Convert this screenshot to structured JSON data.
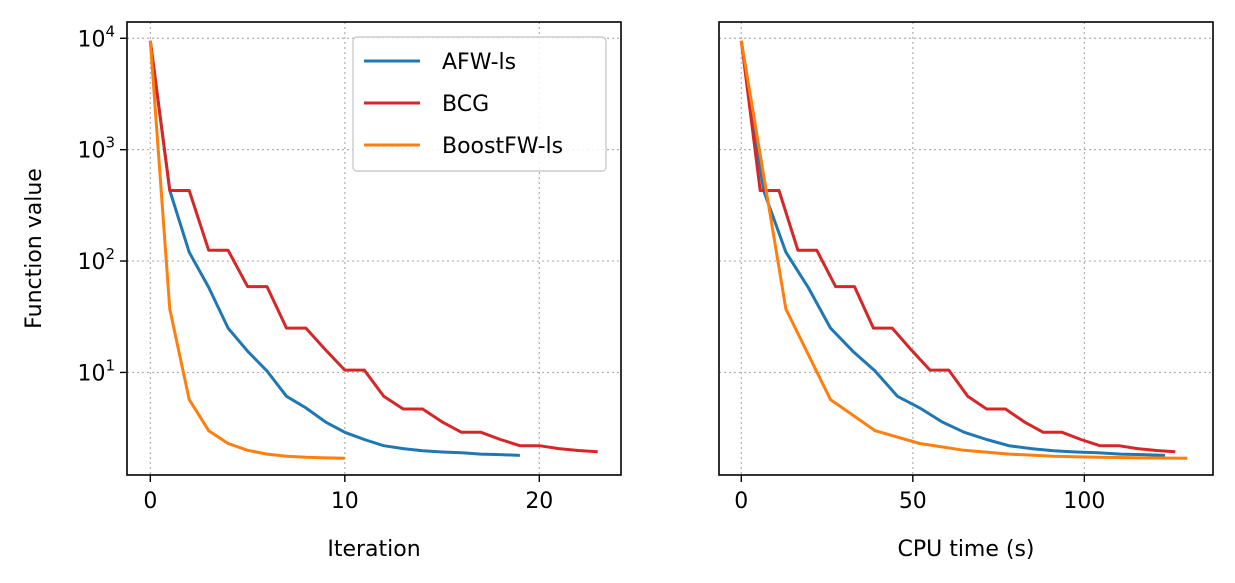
{
  "chart_data": [
    {
      "type": "line",
      "xlabel": "Iteration",
      "ylabel": "Function value",
      "yscale": "log",
      "grid": true,
      "legend": "upper right",
      "xlim": [
        -1.2,
        24.2
      ],
      "ylim": [
        1.2,
        14000
      ],
      "xticks": [
        0,
        10,
        20
      ],
      "xtick_labels": [
        "0",
        "10",
        "20"
      ],
      "yticks": [
        10,
        100,
        1000,
        10000
      ],
      "ytick_labels": [
        {
          "base": "10",
          "exp": "1"
        },
        {
          "base": "10",
          "exp": "2"
        },
        {
          "base": "10",
          "exp": "3"
        },
        {
          "base": "10",
          "exp": "4"
        }
      ],
      "series": [
        {
          "name": "AFW-ls",
          "color": "#1f77b4",
          "x": [
            0,
            1,
            2,
            3,
            4,
            5,
            6,
            7,
            8,
            9,
            10,
            11,
            12,
            13,
            14,
            15,
            16,
            17,
            18,
            19
          ],
          "y": [
            9500,
            430,
            120,
            58,
            25,
            15.5,
            10.3,
            6.1,
            4.8,
            3.6,
            2.9,
            2.5,
            2.2,
            2.07,
            1.98,
            1.93,
            1.9,
            1.85,
            1.83,
            1.8
          ]
        },
        {
          "name": "BCG",
          "color": "#d62728",
          "x": [
            0,
            1,
            2,
            3,
            4,
            5,
            6,
            7,
            8,
            9,
            10,
            11,
            12,
            13,
            14,
            15,
            16,
            17,
            18,
            19,
            20,
            21,
            22,
            23
          ],
          "y": [
            9500,
            430,
            430,
            125,
            125,
            59,
            59,
            25,
            25,
            16,
            10.5,
            10.5,
            6.1,
            4.7,
            4.7,
            3.6,
            2.9,
            2.9,
            2.5,
            2.2,
            2.2,
            2.07,
            1.99,
            1.94
          ]
        },
        {
          "name": "BoostFW-ls",
          "color": "#ff7f0e",
          "x": [
            0,
            1,
            2,
            3,
            4,
            5,
            6,
            7,
            8,
            9,
            10
          ],
          "y": [
            9500,
            37,
            5.7,
            3.0,
            2.3,
            2.0,
            1.85,
            1.77,
            1.73,
            1.71,
            1.7
          ]
        }
      ]
    },
    {
      "type": "line",
      "xlabel": "CPU time (s)",
      "ylabel": "",
      "yscale": "log",
      "grid": true,
      "xlim": [
        -6.5,
        137.5
      ],
      "ylim": [
        1.2,
        14000
      ],
      "xticks": [
        0,
        50,
        100
      ],
      "xtick_labels": [
        "0",
        "50",
        "100"
      ],
      "yticks": [
        10,
        100,
        1000,
        10000
      ],
      "series": [
        {
          "name": "AFW-ls",
          "color": "#1f77b4",
          "x": [
            0,
            6.5,
            13,
            19.5,
            26,
            32.5,
            39,
            45.5,
            52,
            58.5,
            65,
            71.5,
            78,
            84.5,
            91,
            97.5,
            104,
            110.5,
            117,
            123.5
          ],
          "y": [
            9500,
            430,
            120,
            58,
            25,
            15.5,
            10.3,
            6.1,
            4.8,
            3.6,
            2.9,
            2.5,
            2.2,
            2.07,
            1.98,
            1.93,
            1.9,
            1.85,
            1.83,
            1.8
          ]
        },
        {
          "name": "BCG",
          "color": "#d62728",
          "x": [
            0,
            5.5,
            11,
            16.5,
            22,
            27.5,
            33,
            38.5,
            44,
            49.5,
            55,
            60.5,
            66,
            71.5,
            77,
            82.5,
            88,
            93.5,
            99,
            104.5,
            110,
            115.5,
            121,
            126.5
          ],
          "y": [
            9500,
            430,
            430,
            125,
            125,
            59,
            59,
            25,
            25,
            16,
            10.5,
            10.5,
            6.1,
            4.7,
            4.7,
            3.6,
            2.9,
            2.9,
            2.5,
            2.2,
            2.2,
            2.07,
            1.99,
            1.94
          ]
        },
        {
          "name": "BoostFW-ls",
          "color": "#ff7f0e",
          "x": [
            0,
            13,
            26,
            39,
            52,
            65,
            78,
            91,
            104,
            117,
            130
          ],
          "y": [
            9500,
            37,
            5.7,
            3.0,
            2.3,
            2.0,
            1.85,
            1.77,
            1.73,
            1.71,
            1.7
          ]
        }
      ]
    }
  ]
}
